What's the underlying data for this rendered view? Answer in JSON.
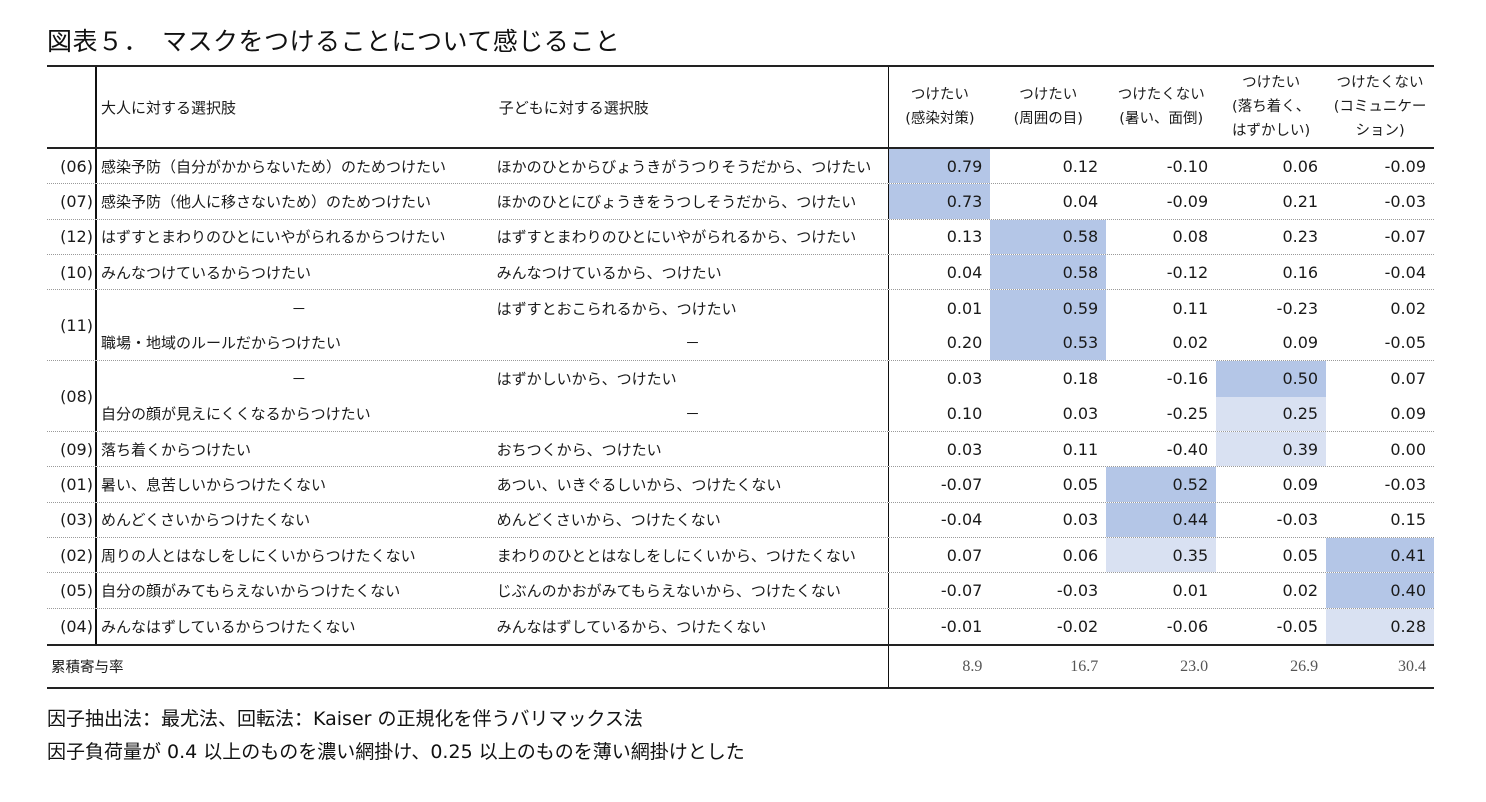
{
  "title": "図表５．　マスクをつけることについて感じること",
  "table": {
    "headers": {
      "id": "",
      "adult": "大人に対する選択肢",
      "child": "子どもに対する選択肢",
      "factors": [
        {
          "line1": "つけたい",
          "line2": "(感染対策)",
          "line3": ""
        },
        {
          "line1": "つけたい",
          "line2": "(周囲の目)",
          "line3": ""
        },
        {
          "line1": "つけたくない",
          "line2": "(暑い、面倒)",
          "line3": ""
        },
        {
          "line1": "つけたい",
          "line2": "(落ち着く、",
          "line3": "はずかしい)"
        },
        {
          "line1": "つけたくない",
          "line2": "(コミュニケー",
          "line3": "ション)"
        }
      ]
    },
    "rows": [
      {
        "id": "(06)",
        "adult": "感染予防（自分がかからないため）のためつけたい",
        "child": "ほかのひとからびょうきがうつりそうだから、つけたい",
        "values": [
          "0.79",
          "0.12",
          "-0.10",
          "0.06",
          "-0.09"
        ],
        "shade": [
          "dark",
          "",
          "",
          "",
          ""
        ]
      },
      {
        "id": "(07)",
        "adult": "感染予防（他人に移さないため）のためつけたい",
        "child": "ほかのひとにびょうきをうつしそうだから、つけたい",
        "values": [
          "0.73",
          "0.04",
          "-0.09",
          "0.21",
          "-0.03"
        ],
        "shade": [
          "dark",
          "",
          "",
          "",
          ""
        ]
      },
      {
        "id": "(12)",
        "adult": "はずすとまわりのひとにいやがられるからつけたい",
        "child": "はずすとまわりのひとにいやがられるから、つけたい",
        "values": [
          "0.13",
          "0.58",
          "0.08",
          "0.23",
          "-0.07"
        ],
        "shade": [
          "",
          "dark",
          "",
          "",
          ""
        ]
      },
      {
        "id": "(10)",
        "adult": "みんなつけているからつけたい",
        "child": "みんなつけているから、つけたい",
        "values": [
          "0.04",
          "0.58",
          "-0.12",
          "0.16",
          "-0.04"
        ],
        "shade": [
          "",
          "dark",
          "",
          "",
          ""
        ]
      },
      {
        "id": "(11)",
        "adult": "－",
        "child": "はずすとおこられるから、つけたい",
        "values": [
          "0.01",
          "0.59",
          "0.11",
          "-0.23",
          "0.02"
        ],
        "shade": [
          "",
          "dark",
          "",
          "",
          ""
        ]
      },
      {
        "id": "",
        "adult": "職場・地域のルールだからつけたい",
        "child": "－",
        "values": [
          "0.20",
          "0.53",
          "0.02",
          "0.09",
          "-0.05"
        ],
        "shade": [
          "",
          "dark",
          "",
          "",
          ""
        ]
      },
      {
        "id": "(08)",
        "adult": "－",
        "child": "はずかしいから、つけたい",
        "values": [
          "0.03",
          "0.18",
          "-0.16",
          "0.50",
          "0.07"
        ],
        "shade": [
          "",
          "",
          "",
          "dark",
          ""
        ]
      },
      {
        "id": "",
        "adult": "自分の顔が見えにくくなるからつけたい",
        "child": "－",
        "values": [
          "0.10",
          "0.03",
          "-0.25",
          "0.25",
          "0.09"
        ],
        "shade": [
          "",
          "",
          "",
          "light",
          ""
        ]
      },
      {
        "id": "(09)",
        "adult": "落ち着くからつけたい",
        "child": "おちつくから、つけたい",
        "values": [
          "0.03",
          "0.11",
          "-0.40",
          "0.39",
          "0.00"
        ],
        "shade": [
          "",
          "",
          "",
          "light",
          ""
        ]
      },
      {
        "id": "(01)",
        "adult": "暑い、息苦しいからつけたくない",
        "child": "あつい、いきぐるしいから、つけたくない",
        "values": [
          "-0.07",
          "0.05",
          "0.52",
          "0.09",
          "-0.03"
        ],
        "shade": [
          "",
          "",
          "dark",
          "",
          ""
        ]
      },
      {
        "id": "(03)",
        "adult": "めんどくさいからつけたくない",
        "child": "めんどくさいから、つけたくない",
        "values": [
          "-0.04",
          "0.03",
          "0.44",
          "-0.03",
          "0.15"
        ],
        "shade": [
          "",
          "",
          "dark",
          "",
          ""
        ]
      },
      {
        "id": "(02)",
        "adult": "周りの人とはなしをしにくいからつけたくない",
        "child": "まわりのひととはなしをしにくいから、つけたくない",
        "values": [
          "0.07",
          "0.06",
          "0.35",
          "0.05",
          "0.41"
        ],
        "shade": [
          "",
          "",
          "light",
          "",
          "dark"
        ]
      },
      {
        "id": "(05)",
        "adult": "自分の顔がみてもらえないからつけたくない",
        "child": "じぶんのかおがみてもらえないから、つけたくない",
        "values": [
          "-0.07",
          "-0.03",
          "0.01",
          "0.02",
          "0.40"
        ],
        "shade": [
          "",
          "",
          "",
          "",
          "dark"
        ]
      },
      {
        "id": "(04)",
        "adult": "みんなはずしているからつけたくない",
        "child": "みんなはずしているから、つけたくない",
        "values": [
          "-0.01",
          "-0.02",
          "-0.06",
          "-0.05",
          "0.28"
        ],
        "shade": [
          "",
          "",
          "",
          "",
          "light"
        ]
      }
    ],
    "footer": {
      "label": "累積寄与率",
      "values": [
        "8.9",
        "16.7",
        "23.0",
        "26.9",
        "30.4"
      ]
    }
  },
  "colors": {
    "shade_dark": "#b4c6e7",
    "shade_light": "#d9e1f2"
  },
  "notes": [
    "因子抽出法：最尤法、回転法：Kaiser の正規化を伴うバリマックス法",
    "因子負荷量が 0.4 以上のものを濃い網掛け、0.25 以上のものを薄い網掛けとした"
  ]
}
